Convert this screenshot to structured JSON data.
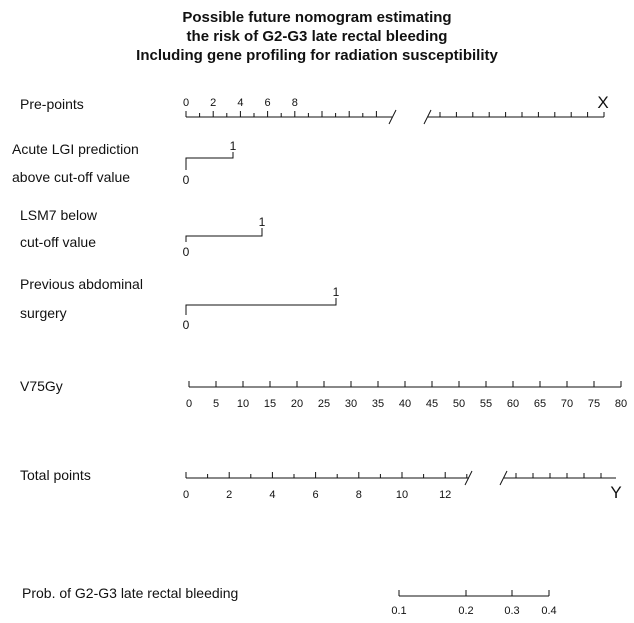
{
  "title_lines": [
    "Possible future nomogram estimating",
    "the risk of G2-G3 late rectal bleeding",
    "Including gene profiling for radiation susceptibility"
  ],
  "rows": {
    "prepoints": {
      "label": "Pre-points",
      "ticks": [
        "0",
        "2",
        "4",
        "6",
        "8"
      ],
      "end_label": "X"
    },
    "acute_lgi": {
      "label_lines": [
        "Acute LGI prediction",
        "above cut-off value"
      ],
      "one": "1",
      "zero": "0"
    },
    "lsm7": {
      "label_lines": [
        "LSM7 below",
        "cut-off value"
      ],
      "one": "1",
      "zero": "0"
    },
    "surgery": {
      "label_lines": [
        "Previous abdominal",
        "surgery"
      ],
      "one": "1",
      "zero": "0"
    },
    "v75": {
      "label": "V75Gy",
      "ticks": [
        "0",
        "5",
        "10",
        "15",
        "20",
        "25",
        "30",
        "35",
        "40",
        "45",
        "50",
        "55",
        "60",
        "65",
        "70",
        "75",
        "80"
      ]
    },
    "total": {
      "label": "Total points",
      "ticks": [
        "0",
        "2",
        "4",
        "6",
        "8",
        "10",
        "12"
      ],
      "end_label": "Y"
    },
    "prob": {
      "label": "Prob. of G2-G3 late rectal bleeding",
      "ticks": [
        "0.1",
        "0.2",
        "0.3",
        "0.4"
      ]
    }
  }
}
